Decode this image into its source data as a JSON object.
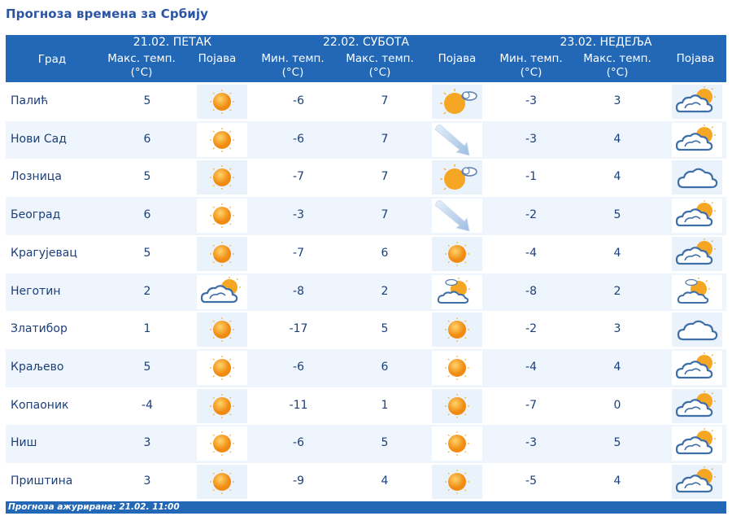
{
  "page": {
    "title": "Прогноза времена за Србију"
  },
  "header": {
    "city_label": "Град",
    "days": [
      {
        "date": "21.02. ПЕТАК",
        "columns": [
          "Макс. темп. (°C)",
          "Појава"
        ]
      },
      {
        "date": "22.02. СУБОТА",
        "columns": [
          "Мин. темп. (°C)",
          "Макс. темп. (°C)",
          "Појава"
        ]
      },
      {
        "date": "23.02. НЕДЕЉА",
        "columns": [
          "Мин. темп. (°C)",
          "Макс. темп. (°C)",
          "Појава"
        ]
      }
    ],
    "col_max_l1": "Макс. темп.",
    "col_min_l1": "Мин. темп.",
    "col_unit": "(°C)",
    "col_phen": "Појава"
  },
  "rows": [
    {
      "city": "Палић",
      "d1_max": "5",
      "d1_icon": "sun-icon",
      "d2_min": "-6",
      "d2_max": "7",
      "d2_icon": "sun-cloud-icon",
      "d3_min": "-3",
      "d3_max": "3",
      "d3_icon": "cloud-sun-icon"
    },
    {
      "city": "Нови Сад",
      "d1_max": "6",
      "d1_icon": "sun-icon",
      "d2_min": "-6",
      "d2_max": "7",
      "d2_icon": "wind-arrow-icon",
      "d3_min": "-3",
      "d3_max": "4",
      "d3_icon": "cloud-sun-icon"
    },
    {
      "city": "Лозница",
      "d1_max": "5",
      "d1_icon": "sun-icon",
      "d2_min": "-7",
      "d2_max": "7",
      "d2_icon": "sun-cloud-icon",
      "d3_min": "-1",
      "d3_max": "4",
      "d3_icon": "cloud-icon"
    },
    {
      "city": "Београд",
      "d1_max": "6",
      "d1_icon": "sun-icon",
      "d2_min": "-3",
      "d2_max": "7",
      "d2_icon": "wind-arrow-icon",
      "d3_min": "-2",
      "d3_max": "5",
      "d3_icon": "cloud-sun-icon"
    },
    {
      "city": "Крагујевац",
      "d1_max": "5",
      "d1_icon": "sun-icon",
      "d2_min": "-7",
      "d2_max": "6",
      "d2_icon": "sun-icon",
      "d3_min": "-4",
      "d3_max": "4",
      "d3_icon": "cloud-sun-icon"
    },
    {
      "city": "Неготин",
      "d1_max": "2",
      "d1_icon": "cloud-sun-icon",
      "d2_min": "-8",
      "d2_max": "2",
      "d2_icon": "partly-cloudy-icon",
      "d3_min": "-8",
      "d3_max": "2",
      "d3_icon": "partly-cloudy-icon"
    },
    {
      "city": "Златибор",
      "d1_max": "1",
      "d1_icon": "sun-icon",
      "d2_min": "-17",
      "d2_max": "5",
      "d2_icon": "sun-icon",
      "d3_min": "-2",
      "d3_max": "3",
      "d3_icon": "cloud-icon"
    },
    {
      "city": "Краљево",
      "d1_max": "5",
      "d1_icon": "sun-icon",
      "d2_min": "-6",
      "d2_max": "6",
      "d2_icon": "sun-icon",
      "d3_min": "-4",
      "d3_max": "4",
      "d3_icon": "cloud-sun-icon"
    },
    {
      "city": "Копаоник",
      "d1_max": "-4",
      "d1_icon": "sun-icon",
      "d2_min": "-11",
      "d2_max": "1",
      "d2_icon": "sun-icon",
      "d3_min": "-7",
      "d3_max": "0",
      "d3_icon": "cloud-sun-icon"
    },
    {
      "city": "Ниш",
      "d1_max": "3",
      "d1_icon": "sun-icon",
      "d2_min": "-6",
      "d2_max": "5",
      "d2_icon": "sun-icon",
      "d3_min": "-3",
      "d3_max": "5",
      "d3_icon": "cloud-sun-icon"
    },
    {
      "city": "Приштина",
      "d1_max": "3",
      "d1_icon": "sun-icon",
      "d2_min": "-9",
      "d2_max": "4",
      "d2_icon": "sun-icon",
      "d3_min": "-5",
      "d3_max": "4",
      "d3_icon": "cloud-sun-icon"
    }
  ],
  "footer": {
    "text": "Прогноза ажурирана:  21.02. 11:00"
  },
  "colors": {
    "header_bg": "#2268b7",
    "title": "#2a55a5",
    "text": "#1b3f7a",
    "row_alt": "#eef5fc",
    "sun": "#f5a623",
    "cloud": "#3f6fa8"
  }
}
